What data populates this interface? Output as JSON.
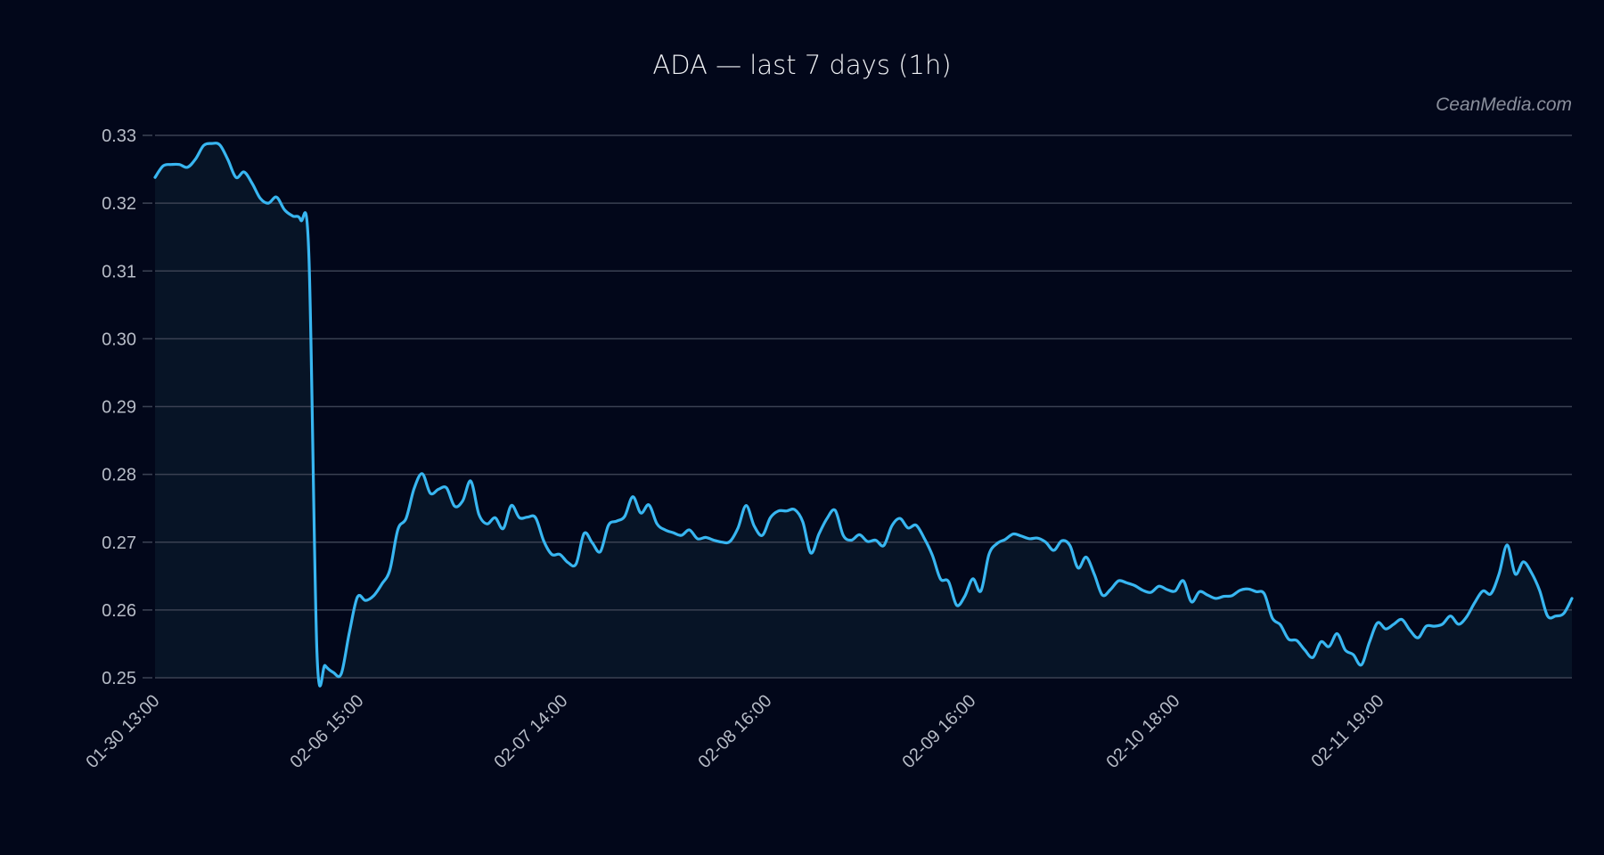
{
  "header": {
    "title": "ADA — last 7 days (1h)",
    "watermark": "CeanMedia.com"
  },
  "colors": {
    "background": "#02071a",
    "line": "#38b6f1",
    "fill": "#071426",
    "grid": "#3a4152",
    "tick_label": "#b7bcc7"
  },
  "chart_data": {
    "type": "area",
    "title": "ADA — last 7 days (1h)",
    "xlabel": "",
    "ylabel": "",
    "ylim": [
      0.25,
      0.33
    ],
    "grid": "horizontal",
    "legend": "none",
    "yticks": [
      "0.33",
      "0.32",
      "0.31",
      "0.30",
      "0.29",
      "0.28",
      "0.27",
      "0.26",
      "0.25"
    ],
    "xticks": [
      "01-30 13:00",
      "02-06 15:00",
      "02-07 14:00",
      "02-08 16:00",
      "02-09 16:00",
      "02-10 18:00",
      "02-11 19:00"
    ],
    "series": [
      {
        "name": "ADA",
        "values": [
          0.3238,
          0.3255,
          0.3257,
          0.3257,
          0.3253,
          0.3265,
          0.3285,
          0.3288,
          0.3286,
          0.3264,
          0.3238,
          0.3246,
          0.3229,
          0.3207,
          0.32,
          0.3209,
          0.319,
          0.3181,
          0.3175,
          0.3124,
          0.2537,
          0.2518,
          0.2508,
          0.2506,
          0.2567,
          0.2619,
          0.2614,
          0.2621,
          0.2638,
          0.2659,
          0.2719,
          0.2735,
          0.2779,
          0.2801,
          0.2772,
          0.2778,
          0.278,
          0.2753,
          0.2761,
          0.279,
          0.2741,
          0.2727,
          0.2736,
          0.272,
          0.2754,
          0.2736,
          0.2737,
          0.2736,
          0.2702,
          0.2682,
          0.2682,
          0.267,
          0.2668,
          0.2713,
          0.2699,
          0.2686,
          0.2725,
          0.2731,
          0.2738,
          0.2767,
          0.2743,
          0.2755,
          0.2727,
          0.2718,
          0.2714,
          0.271,
          0.2718,
          0.2705,
          0.2707,
          0.2703,
          0.27,
          0.2701,
          0.2721,
          0.2754,
          0.2724,
          0.271,
          0.2736,
          0.2746,
          0.2746,
          0.2748,
          0.273,
          0.2684,
          0.2712,
          0.2735,
          0.2747,
          0.271,
          0.2703,
          0.2711,
          0.2701,
          0.2703,
          0.2695,
          0.2724,
          0.2735,
          0.2721,
          0.2725,
          0.2706,
          0.2681,
          0.2646,
          0.2642,
          0.2607,
          0.262,
          0.2646,
          0.2628,
          0.2682,
          0.2698,
          0.2704,
          0.2712,
          0.2709,
          0.2705,
          0.2706,
          0.27,
          0.2688,
          0.2702,
          0.2695,
          0.2662,
          0.2678,
          0.2653,
          0.2622,
          0.263,
          0.2643,
          0.264,
          0.2636,
          0.2629,
          0.2626,
          0.2635,
          0.263,
          0.2628,
          0.2643,
          0.2612,
          0.2627,
          0.2622,
          0.2617,
          0.262,
          0.2621,
          0.2629,
          0.2631,
          0.2627,
          0.2624,
          0.2588,
          0.2578,
          0.2557,
          0.2555,
          0.2541,
          0.253,
          0.2553,
          0.2546,
          0.2565,
          0.2541,
          0.2534,
          0.2519,
          0.2553,
          0.2581,
          0.2572,
          0.2579,
          0.2586,
          0.257,
          0.2559,
          0.2576,
          0.2576,
          0.2579,
          0.2591,
          0.2579,
          0.259,
          0.2611,
          0.2628,
          0.2624,
          0.2653,
          0.2696,
          0.2653,
          0.2671,
          0.2655,
          0.2629,
          0.2591,
          0.2591,
          0.2595,
          0.2617
        ]
      }
    ]
  }
}
